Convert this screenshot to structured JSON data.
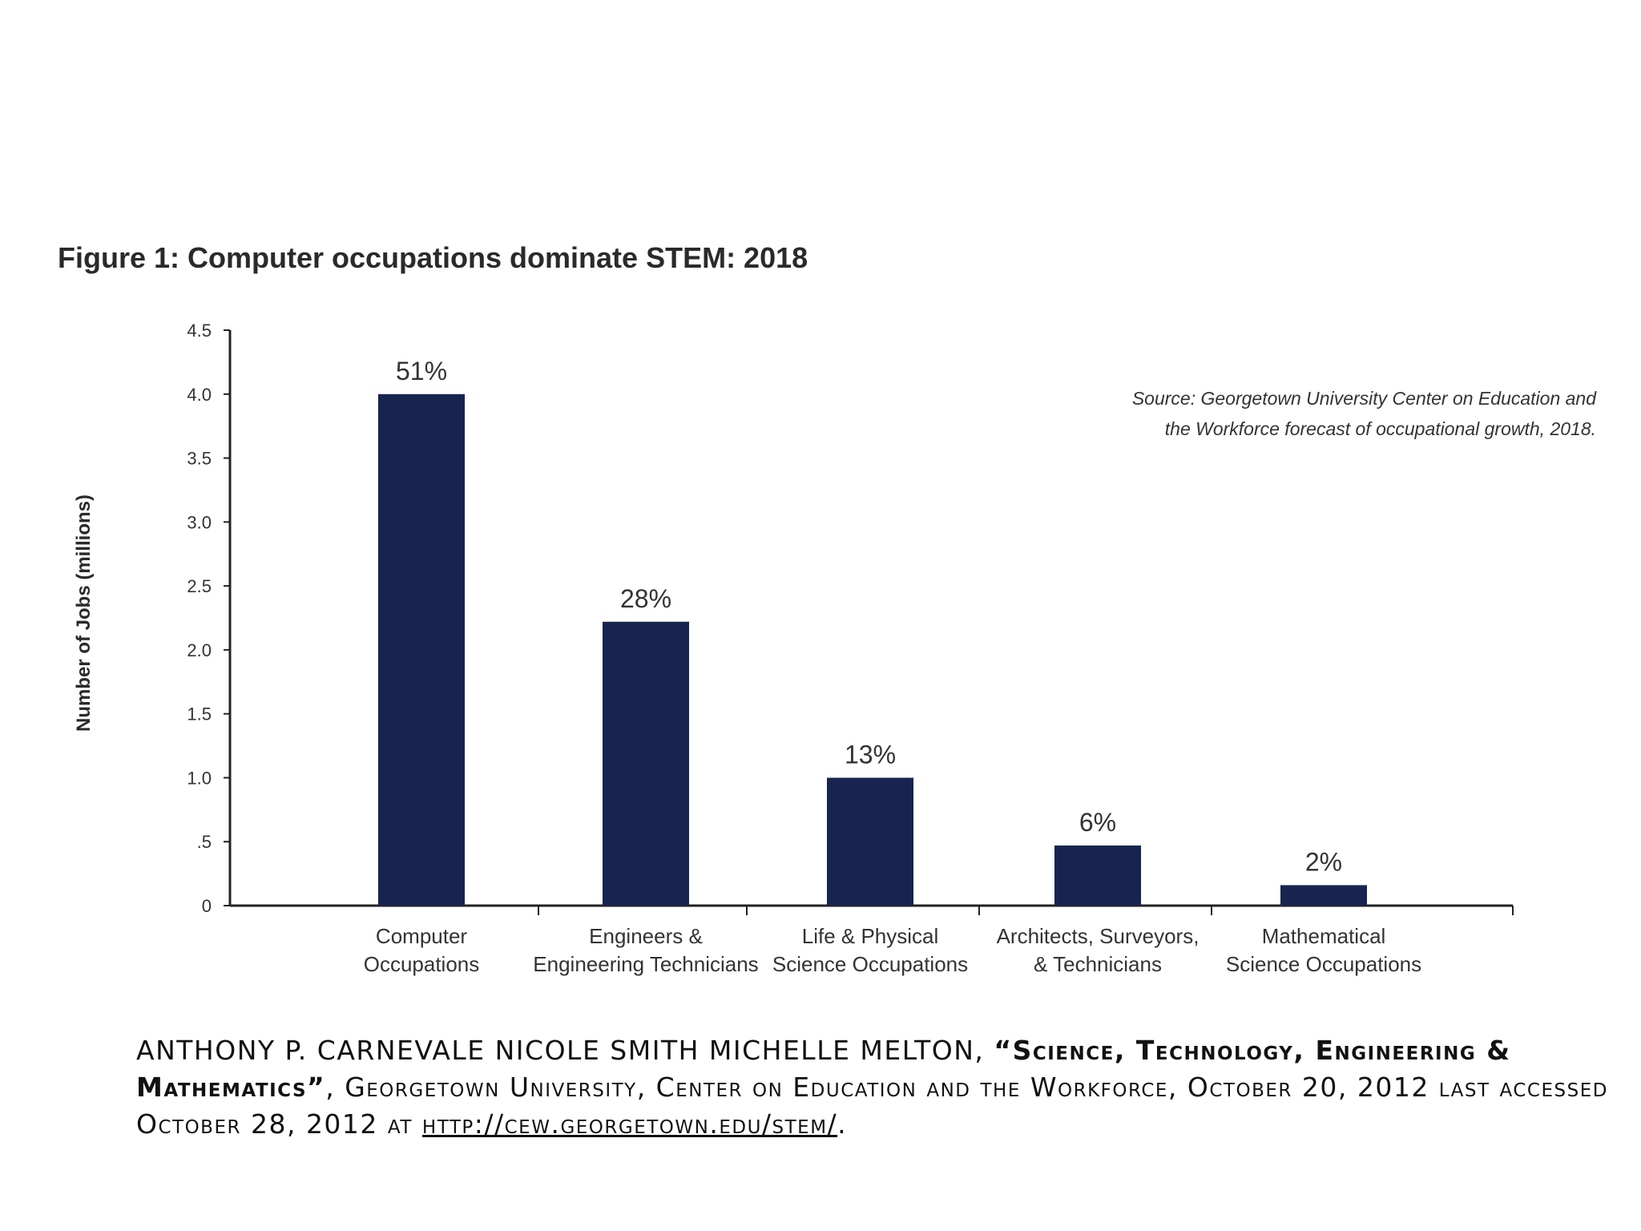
{
  "chart_data": {
    "type": "bar",
    "title": "Figure 1: Computer occupations dominate STEM: 2018",
    "ylabel": "Number of Jobs (millions)",
    "xlabel": "",
    "ylim": [
      0,
      4.5
    ],
    "yticks": [
      {
        "value": 0,
        "label": "0"
      },
      {
        "value": 0.5,
        "label": ".5"
      },
      {
        "value": 1.0,
        "label": "1.0"
      },
      {
        "value": 1.5,
        "label": "1.5"
      },
      {
        "value": 2.0,
        "label": "2.0"
      },
      {
        "value": 2.5,
        "label": "2.5"
      },
      {
        "value": 3.0,
        "label": "3.0"
      },
      {
        "value": 3.5,
        "label": "3.5"
      },
      {
        "value": 4.0,
        "label": "4.0"
      },
      {
        "value": 4.5,
        "label": "4.5"
      }
    ],
    "categories": [
      [
        "Computer",
        "Occupations"
      ],
      [
        "Engineers &",
        "Engineering Technicians"
      ],
      [
        "Life & Physical",
        "Science Occupations"
      ],
      [
        "Architects, Surveyors,",
        "& Technicians"
      ],
      [
        "Mathematical",
        "Science Occupations"
      ]
    ],
    "values": [
      4.0,
      2.22,
      1.0,
      0.47,
      0.16
    ],
    "data_labels": [
      "51%",
      "28%",
      "13%",
      "6%",
      "2%"
    ],
    "bar_color": "#17244f",
    "grid": false,
    "annotation": [
      "Source: Georgetown University Center on Education and",
      "the Workforce forecast of occupational growth, 2018."
    ]
  },
  "citation": {
    "authors": "Anthony P. Carnevale Nicole Smith Michelle Melton, ",
    "title": "“Science, Technology, Engineering & Mathematics”",
    "rest": ", Georgetown University, Center on Education and the Workforce, October 20, 2012 last accessed October 28, 2012 at ",
    "url": "http://cew.georgetown.edu/stem/",
    "end": "."
  }
}
